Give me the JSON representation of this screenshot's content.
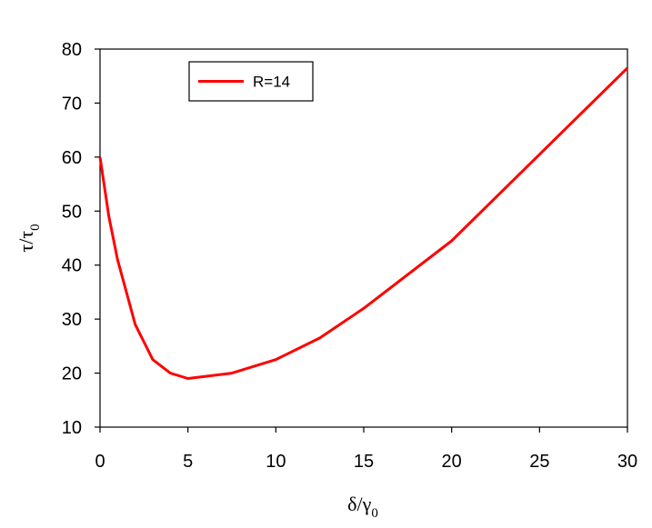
{
  "chart_data": {
    "type": "line",
    "xlabel_main": "δ/γ",
    "xlabel_sub": "0",
    "ylabel_main": "τ/τ",
    "ylabel_sub": "0",
    "xlim": [
      0,
      30
    ],
    "ylim": [
      10,
      80
    ],
    "xticks": [
      0,
      5,
      10,
      15,
      20,
      25,
      30
    ],
    "yticks": [
      10,
      20,
      30,
      40,
      50,
      60,
      70,
      80
    ],
    "grid": false,
    "legend": "top-left",
    "series": [
      {
        "name": "R=14",
        "color": "#ff0000",
        "x": [
          0,
          0.5,
          1,
          1.5,
          2,
          3,
          4,
          5,
          7.5,
          10,
          12.5,
          15,
          20,
          25,
          30
        ],
        "y": [
          60,
          49,
          41,
          35,
          29,
          22.5,
          20,
          19,
          20,
          22.5,
          26.5,
          32,
          44.5,
          60.5,
          76.5
        ]
      }
    ]
  }
}
